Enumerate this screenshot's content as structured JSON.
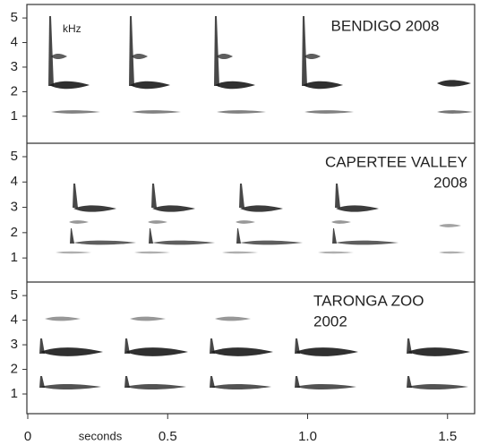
{
  "chart_data": [
    {
      "type": "spectrogram",
      "title": [
        "BENDIGO 2008"
      ],
      "y_label": "kHz",
      "ylim": [
        -0.1,
        5.55
      ],
      "yticks": [
        1,
        2,
        3,
        4,
        5
      ]
    },
    {
      "type": "spectrogram",
      "title": [
        "CAPERTEE VALLEY",
        "2008"
      ],
      "ylim": [
        0.05,
        5.53
      ],
      "yticks": [
        1,
        2,
        3,
        4,
        5
      ]
    },
    {
      "type": "spectrogram",
      "title": [
        "TARONGA ZOO",
        "2002"
      ],
      "ylim": [
        0.2,
        5.55
      ],
      "yticks": [
        1,
        2,
        3,
        4,
        5
      ],
      "x_label": "seconds",
      "xlim": [
        0,
        1.6
      ],
      "xticks": [
        0,
        0.5,
        {
          "value": 1,
          "label": "1.0"
        },
        1.5
      ]
    }
  ]
}
